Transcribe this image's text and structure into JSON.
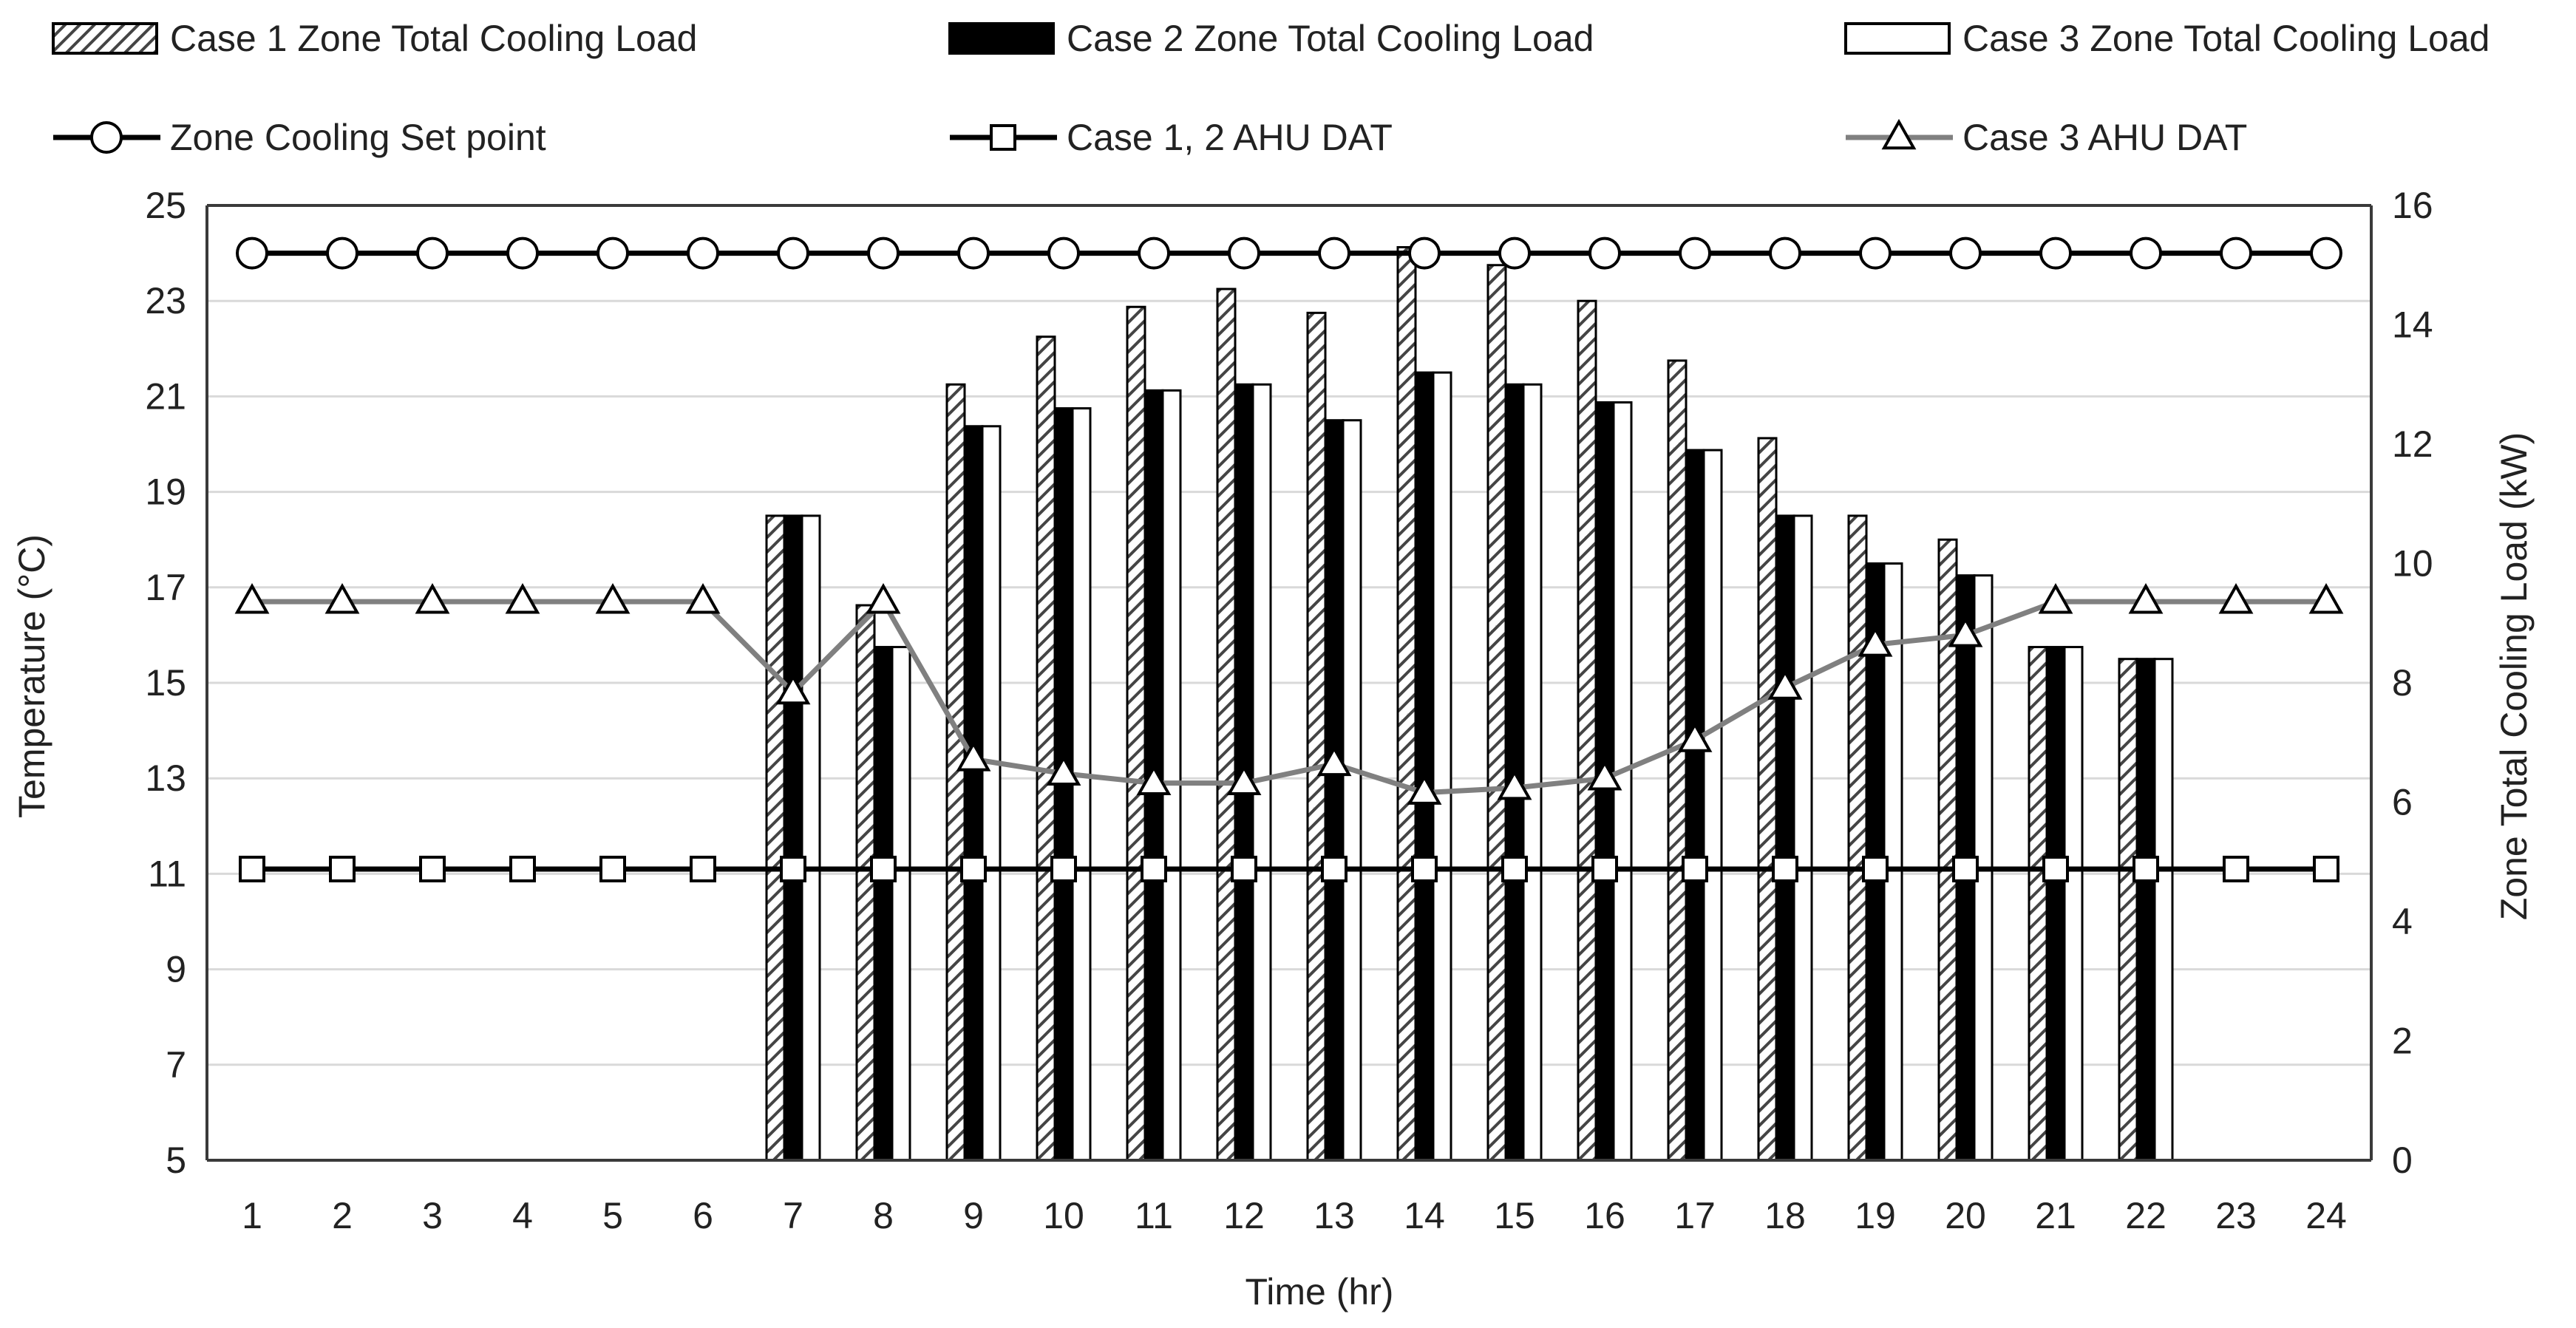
{
  "chart_data": {
    "type": "bar",
    "xlabel": "Time (hr)",
    "ylabel": "Temperature (°C)",
    "y2label": "Zone Total Cooling Load (kW)",
    "ylim": [
      5,
      25
    ],
    "yticks": [
      5,
      7,
      9,
      11,
      13,
      15,
      17,
      19,
      21,
      23,
      25
    ],
    "y2lim": [
      0,
      16
    ],
    "y2ticks": [
      0,
      2,
      4,
      6,
      8,
      10,
      12,
      14,
      16
    ],
    "grid": true,
    "legend_position": "top",
    "categories": [
      "1",
      "2",
      "3",
      "4",
      "5",
      "6",
      "7",
      "8",
      "9",
      "10",
      "11",
      "12",
      "13",
      "14",
      "15",
      "16",
      "17",
      "18",
      "19",
      "20",
      "21",
      "22",
      "23",
      "24"
    ],
    "bar_series": [
      {
        "name": "Case 1 Zone Total Cooling Load",
        "axis": "right",
        "style": "hatch",
        "values": [
          0,
          0,
          0,
          0,
          0,
          0,
          10.8,
          9.3,
          13.0,
          13.8,
          14.3,
          14.6,
          14.2,
          15.3,
          15.0,
          14.4,
          13.4,
          12.1,
          10.8,
          10.4,
          8.6,
          8.4,
          0,
          0
        ]
      },
      {
        "name": "Case 2 Zone Total Cooling Load",
        "axis": "right",
        "style": "solid",
        "values": [
          0,
          0,
          0,
          0,
          0,
          0,
          10.8,
          8.6,
          12.3,
          12.6,
          12.9,
          13.0,
          12.4,
          13.2,
          13.0,
          12.7,
          11.9,
          10.8,
          10.0,
          9.8,
          8.6,
          8.4,
          0,
          0
        ]
      },
      {
        "name": "Case 3 Zone Total Cooling Load",
        "axis": "right",
        "style": "open",
        "values": [
          0,
          0,
          0,
          0,
          0,
          0,
          10.8,
          8.6,
          12.3,
          12.6,
          12.9,
          13.0,
          12.4,
          13.2,
          13.0,
          12.7,
          11.9,
          10.8,
          10.0,
          9.8,
          8.6,
          8.4,
          0,
          0
        ]
      }
    ],
    "line_series": [
      {
        "name": "Zone Cooling Set point",
        "axis": "left",
        "marker": "circle",
        "values": [
          24,
          24,
          24,
          24,
          24,
          24,
          24,
          24,
          24,
          24,
          24,
          24,
          24,
          24,
          24,
          24,
          24,
          24,
          24,
          24,
          24,
          24,
          24,
          24
        ]
      },
      {
        "name": "Case 1, 2 AHU DAT",
        "axis": "left",
        "marker": "square",
        "values": [
          11.1,
          11.1,
          11.1,
          11.1,
          11.1,
          11.1,
          11.1,
          11.1,
          11.1,
          11.1,
          11.1,
          11.1,
          11.1,
          11.1,
          11.1,
          11.1,
          11.1,
          11.1,
          11.1,
          11.1,
          11.1,
          11.1,
          11.1,
          11.1
        ]
      },
      {
        "name": "Case 3 AHU DAT",
        "axis": "left",
        "marker": "triangle",
        "values": [
          16.7,
          16.7,
          16.7,
          16.7,
          16.7,
          16.7,
          14.8,
          16.7,
          13.4,
          13.1,
          12.9,
          12.9,
          13.3,
          12.7,
          12.8,
          13.0,
          13.8,
          14.9,
          15.8,
          16.0,
          16.7,
          16.7,
          16.7,
          16.7
        ]
      }
    ]
  },
  "colors": {
    "axis": "#3a3a3a",
    "grid": "#d9d9d9",
    "bar_solid": "#000000",
    "bar_open_fill": "#ffffff",
    "hatch_fg": "#444444",
    "line_black": "#000000",
    "line_gray": "#808080"
  }
}
